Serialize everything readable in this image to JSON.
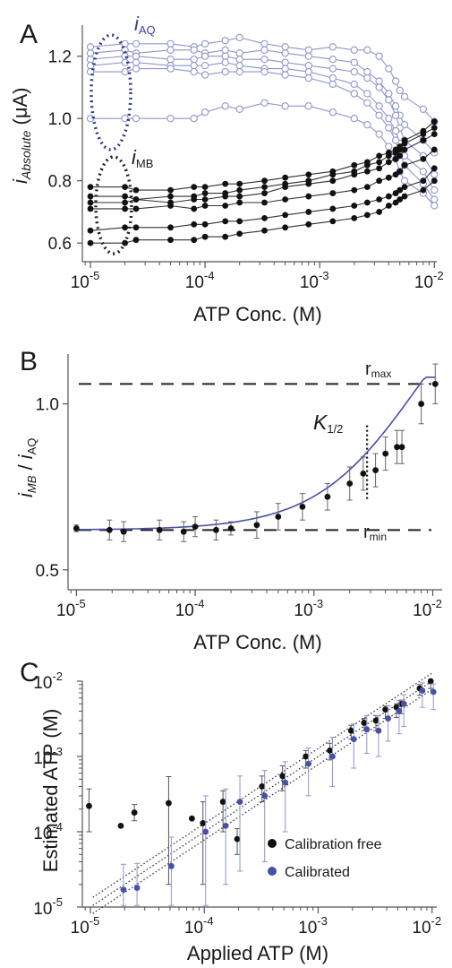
{
  "colors": {
    "ink": "#111111",
    "blue": "#4a4fa8",
    "lightblue": "#8f95cc",
    "grid": "#000000"
  },
  "panels": [
    {
      "letter": "A"
    },
    {
      "letter": "B"
    },
    {
      "letter": "C"
    }
  ],
  "chart_data": [
    {
      "type": "line",
      "panel": "A",
      "xscale": "log",
      "xlim": [
        8.5e-06,
        0.0105
      ],
      "ylim": [
        0.54,
        1.3
      ],
      "xlabel": "ATP Conc. (M)",
      "ylabel": "iAbsolute (μA)",
      "xticks": [
        1e-05,
        0.0001,
        0.001,
        0.01
      ],
      "xtick_labels": [
        "10",
        "10",
        "10",
        "10"
      ],
      "xtick_exponents": [
        "-5",
        "-4",
        "-3",
        "-2"
      ],
      "yticks": [
        0.6,
        0.8,
        1.0,
        1.2
      ],
      "ytick_labels": [
        "0.6",
        "0.8",
        "1.0",
        "1.2"
      ],
      "annotations": {
        "i_aq": "i",
        "i_aq_sub": "AQ",
        "i_mb": "i",
        "i_mb_sub": "MB"
      },
      "x": [
        1e-05,
        2e-05,
        2.5e-05,
        5e-05,
        8e-05,
        0.0001,
        0.00015,
        0.0002,
        0.00033,
        0.0005,
        0.0008,
        0.0013,
        0.002,
        0.0026,
        0.0033,
        0.004,
        0.0046,
        0.005,
        0.0055,
        0.008,
        0.01
      ],
      "series": [
        {
          "group": "AQ",
          "values": [
            1.23,
            1.24,
            1.24,
            1.24,
            1.23,
            1.24,
            1.25,
            1.26,
            1.24,
            1.23,
            1.22,
            1.23,
            1.22,
            1.22,
            1.2,
            1.16,
            1.12,
            1.09,
            1.07,
            1.03,
            0.99
          ]
        },
        {
          "group": "AQ",
          "values": [
            1.21,
            1.22,
            1.21,
            1.22,
            1.22,
            1.21,
            1.22,
            1.21,
            1.22,
            1.21,
            1.2,
            1.19,
            1.18,
            1.15,
            1.12,
            1.08,
            1.04,
            1.01,
            0.98,
            0.93,
            0.89
          ]
        },
        {
          "group": "AQ",
          "values": [
            1.19,
            1.2,
            1.2,
            1.19,
            1.19,
            1.2,
            1.2,
            1.19,
            1.19,
            1.18,
            1.17,
            1.16,
            1.15,
            1.13,
            1.1,
            1.06,
            1.01,
            0.97,
            0.93,
            0.88,
            0.82
          ]
        },
        {
          "group": "AQ",
          "values": [
            1.17,
            1.18,
            1.18,
            1.17,
            1.17,
            1.17,
            1.18,
            1.17,
            1.16,
            1.16,
            1.15,
            1.13,
            1.11,
            1.08,
            1.04,
            1.0,
            0.96,
            0.92,
            0.88,
            0.83,
            0.77
          ]
        },
        {
          "group": "AQ",
          "values": [
            1.15,
            1.15,
            1.16,
            1.16,
            1.15,
            1.14,
            1.15,
            1.15,
            1.15,
            1.14,
            1.13,
            1.11,
            1.08,
            1.05,
            1.01,
            0.97,
            0.93,
            0.89,
            0.85,
            0.79,
            0.74
          ]
        },
        {
          "group": "AQ",
          "values": [
            1.0,
            1.0,
            1.0,
            1.0,
            1.0,
            1.02,
            1.04,
            1.03,
            1.05,
            1.04,
            1.04,
            1.02,
            1.0,
            0.98,
            0.95,
            0.91,
            0.87,
            0.83,
            0.8,
            0.76,
            0.72
          ]
        },
        {
          "group": "MB",
          "values": [
            0.78,
            0.78,
            0.77,
            0.77,
            0.78,
            0.78,
            0.79,
            0.79,
            0.8,
            0.81,
            0.82,
            0.83,
            0.85,
            0.86,
            0.88,
            0.89,
            0.9,
            0.91,
            0.93,
            0.96,
            0.99
          ]
        },
        {
          "group": "MB",
          "values": [
            0.75,
            0.75,
            0.74,
            0.75,
            0.75,
            0.76,
            0.76,
            0.77,
            0.78,
            0.79,
            0.8,
            0.82,
            0.83,
            0.85,
            0.86,
            0.88,
            0.89,
            0.9,
            0.92,
            0.95,
            0.97
          ]
        },
        {
          "group": "MB",
          "values": [
            0.73,
            0.73,
            0.74,
            0.73,
            0.74,
            0.74,
            0.75,
            0.75,
            0.76,
            0.78,
            0.79,
            0.8,
            0.82,
            0.83,
            0.84,
            0.86,
            0.87,
            0.88,
            0.9,
            0.93,
            0.95
          ]
        },
        {
          "group": "MB",
          "values": [
            0.71,
            0.71,
            0.71,
            0.72,
            0.71,
            0.72,
            0.72,
            0.73,
            0.73,
            0.74,
            0.75,
            0.76,
            0.77,
            0.78,
            0.8,
            0.81,
            0.82,
            0.83,
            0.85,
            0.87,
            0.9
          ]
        },
        {
          "group": "MB",
          "values": [
            0.64,
            0.65,
            0.65,
            0.65,
            0.66,
            0.66,
            0.67,
            0.67,
            0.68,
            0.69,
            0.7,
            0.71,
            0.72,
            0.73,
            0.74,
            0.75,
            0.76,
            0.77,
            0.78,
            0.8,
            0.84
          ]
        },
        {
          "group": "MB",
          "values": [
            0.6,
            0.6,
            0.61,
            0.61,
            0.61,
            0.62,
            0.62,
            0.63,
            0.64,
            0.65,
            0.66,
            0.67,
            0.68,
            0.69,
            0.7,
            0.72,
            0.73,
            0.74,
            0.75,
            0.77,
            0.8
          ]
        }
      ]
    },
    {
      "type": "scatter",
      "panel": "B",
      "xscale": "log",
      "xlim": [
        8.5e-06,
        0.012
      ],
      "ylim": [
        0.44,
        1.15
      ],
      "xlabel": "ATP Conc. (M)",
      "ylabel": "iMB / iAQ",
      "xticks": [
        1e-05,
        0.0001,
        0.001,
        0.01
      ],
      "xtick_labels": [
        "10",
        "10",
        "10",
        "10"
      ],
      "xtick_exponents": [
        "-5",
        "-4",
        "-3",
        "-2"
      ],
      "yticks": [
        0.5,
        1.0
      ],
      "ytick_labels": [
        "0.5",
        "1.0"
      ],
      "r_max": 1.06,
      "r_min": 0.62,
      "k_half": 0.0028,
      "annotations": {
        "r_max": "r",
        "r_max_sub": "max",
        "r_min": "r",
        "r_min_sub": "min",
        "k_half": "K",
        "k_half_sub": "1/2"
      },
      "points": {
        "x": [
          1e-05,
          1.9e-05,
          2.5e-05,
          5e-05,
          8e-05,
          0.0001,
          0.00015,
          0.0002,
          0.00033,
          0.0005,
          0.0008,
          0.0013,
          0.002,
          0.0026,
          0.0033,
          0.004,
          0.005,
          0.0055,
          0.008,
          0.0105
        ],
        "y": [
          0.625,
          0.62,
          0.615,
          0.62,
          0.615,
          0.63,
          0.62,
          0.625,
          0.635,
          0.66,
          0.69,
          0.72,
          0.76,
          0.79,
          0.8,
          0.85,
          0.87,
          0.87,
          1.0,
          1.06
        ],
        "err": [
          0.01,
          0.03,
          0.03,
          0.03,
          0.03,
          0.03,
          0.03,
          0.02,
          0.04,
          0.04,
          0.04,
          0.04,
          0.05,
          0.05,
          0.05,
          0.05,
          0.05,
          0.05,
          0.06,
          0.06
        ]
      }
    },
    {
      "type": "scatter",
      "panel": "C",
      "xscale": "log",
      "yscale": "log",
      "xlim": [
        8.5e-06,
        0.011
      ],
      "ylim": [
        1e-05,
        0.01
      ],
      "xlabel": "Applied ATP (M)",
      "ylabel": "Estimated ATP (M)",
      "xticks": [
        1e-05,
        0.0001,
        0.001,
        0.01
      ],
      "xtick_labels": [
        "10",
        "10",
        "10",
        "10"
      ],
      "xtick_exponents": [
        "-5",
        "-4",
        "-3",
        "-2"
      ],
      "yticks": [
        1e-05,
        0.0001,
        0.001,
        0.01
      ],
      "ytick_labels": [
        "10",
        "10",
        "10",
        "10"
      ],
      "ytick_exponents": [
        "-5",
        "-4",
        "-3",
        "-2"
      ],
      "legend": "bottom-right",
      "series": [
        {
          "name": "Calibration free",
          "color": "#111111",
          "x": [
            1e-05,
            1.9e-05,
            2.5e-05,
            5e-05,
            8e-05,
            0.0001,
            0.00015,
            0.0002,
            0.00033,
            0.0005,
            0.0008,
            0.0013,
            0.002,
            0.0026,
            0.0033,
            0.004,
            0.005,
            0.0055,
            0.008,
            0.01
          ],
          "y": [
            0.00022,
            0.00012,
            0.00018,
            0.00024,
            0.00015,
            0.00013,
            0.00025,
            8e-05,
            0.0004,
            0.00055,
            0.001,
            0.0012,
            0.0022,
            0.0028,
            0.003,
            0.0042,
            0.0045,
            0.005,
            0.008,
            0.01
          ],
          "err_low": [
            0.00012,
            0,
            4e-05,
            0.00022,
            0,
            0.00011,
            0.00015,
            3e-05,
            0.00015,
            0.0002,
            0.0003,
            0.0003,
            0.0005,
            0.0006,
            0.0008,
            0.001,
            0.0012,
            0.0013,
            0.0015,
            0.002
          ],
          "err_high": [
            0.00015,
            0,
            5e-05,
            0.0003,
            0,
            0.00012,
            0.0001,
            3e-05,
            0.00015,
            0.0002,
            0.0002,
            0.0003,
            0.0004,
            0.0004,
            0.0005,
            0.0005,
            0.0005,
            0.0006,
            0.001,
            0.001
          ]
        },
        {
          "name": "Calibrated",
          "color": "#4a4fa8",
          "x": [
            1.9e-05,
            2.5e-05,
            5e-05,
            0.0001,
            0.00015,
            0.0002,
            0.00033,
            0.0005,
            0.0008,
            0.0013,
            0.002,
            0.0026,
            0.0033,
            0.004,
            0.005,
            0.0055,
            0.008,
            0.01
          ],
          "y": [
            1.7e-05,
            1.8e-05,
            3.5e-05,
            0.0001,
            0.00012,
            0.00025,
            0.0003,
            0.00045,
            0.0008,
            0.001,
            0.0017,
            0.0023,
            0.0022,
            0.0032,
            0.004,
            0.005,
            0.0075,
            0.0072
          ],
          "err_low": [
            1e-05,
            1e-05,
            2.5e-05,
            9e-05,
            0.0001,
            0.00022,
            0.00026,
            0.00035,
            0.0005,
            0.0006,
            0.001,
            0.0012,
            0.0012,
            0.0016,
            0.002,
            0.0025,
            0.003,
            0.003
          ],
          "err_high": [
            2e-05,
            2e-05,
            5e-05,
            0.0002,
            0.00025,
            0.0003,
            0.00035,
            0.0004,
            0.0005,
            0.0008,
            0.001,
            0.0012,
            0.0013,
            0.0015,
            0.0015,
            0.0016,
            0.002,
            0.002
          ]
        }
      ],
      "reference_lines": [
        0.78,
        1.0,
        1.28
      ]
    }
  ]
}
